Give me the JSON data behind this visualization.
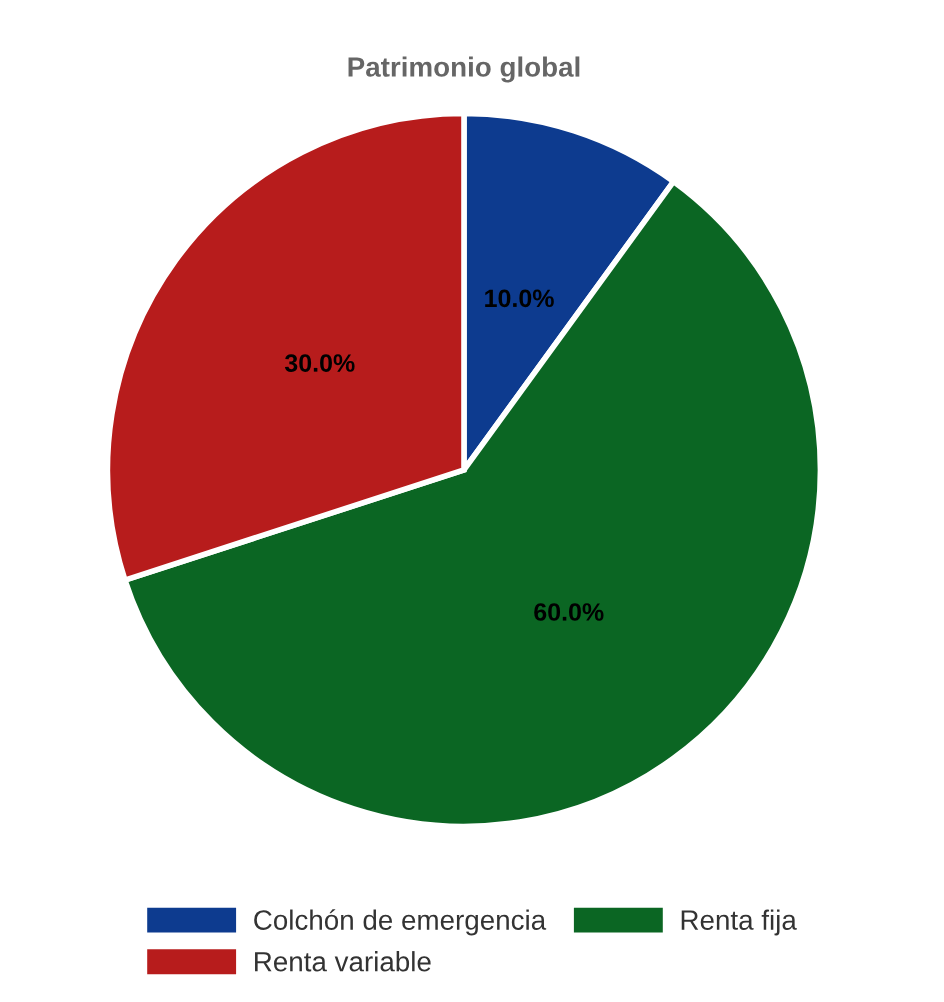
{
  "chart_data": {
    "type": "pie",
    "title": "Patrimonio global",
    "categories": [
      "Colchón de emergencia",
      "Renta fija",
      "Renta variable"
    ],
    "values": [
      10,
      60,
      30
    ],
    "colors": [
      "#0d3b8f",
      "#0b6623",
      "#b71c1c"
    ],
    "value_labels": [
      "10.0%",
      "60.0%",
      "30.0%"
    ],
    "legend": "bottom"
  }
}
